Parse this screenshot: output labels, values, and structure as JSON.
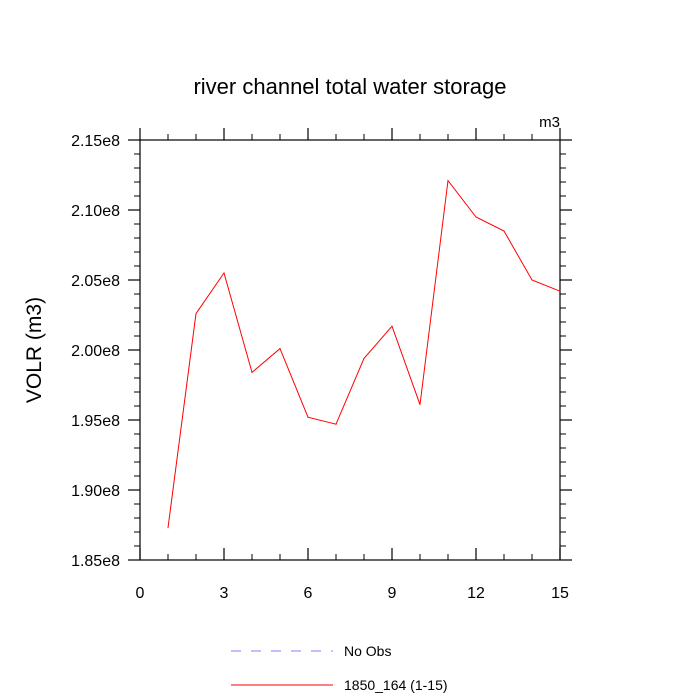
{
  "chart_data": {
    "type": "line",
    "title": "river channel total water storage",
    "units_label": "m3",
    "ylabel": "VOLR  (m3)",
    "xlabel": "",
    "xlim": [
      0,
      15
    ],
    "ylim": [
      185000000.0,
      215000000.0
    ],
    "x_ticks": [
      0,
      3,
      6,
      9,
      12,
      15
    ],
    "x_tick_labels": [
      "0",
      "3",
      "6",
      "9",
      "12",
      "15"
    ],
    "y_ticks": [
      185000000.0,
      190000000.0,
      195000000.0,
      200000000.0,
      205000000.0,
      210000000.0,
      215000000.0
    ],
    "y_tick_labels": [
      "1.85e8",
      "1.90e8",
      "1.95e8",
      "2.00e8",
      "2.05e8",
      "2.10e8",
      "2.15e8"
    ],
    "grid": false,
    "legend_position": "bottom",
    "series": [
      {
        "name": "1850_164 (1-15)",
        "color": "#ff0000",
        "style": "solid",
        "x": [
          1,
          2,
          3,
          4,
          5,
          6,
          7,
          8,
          9,
          10,
          11,
          12,
          13,
          14,
          15
        ],
        "y": [
          187300000.0,
          202600000.0,
          205500000.0,
          198400000.0,
          200100000.0,
          195200000.0,
          194700000.0,
          199400000.0,
          201700000.0,
          196100000.0,
          212100000.0,
          209500000.0,
          208500000.0,
          205000000.0,
          204200000.0
        ]
      }
    ],
    "legend": [
      {
        "label": "No Obs",
        "color": "#8080ff",
        "style": "dashed"
      },
      {
        "label": "1850_164 (1-15)",
        "color": "#ff0000",
        "style": "solid"
      }
    ]
  }
}
